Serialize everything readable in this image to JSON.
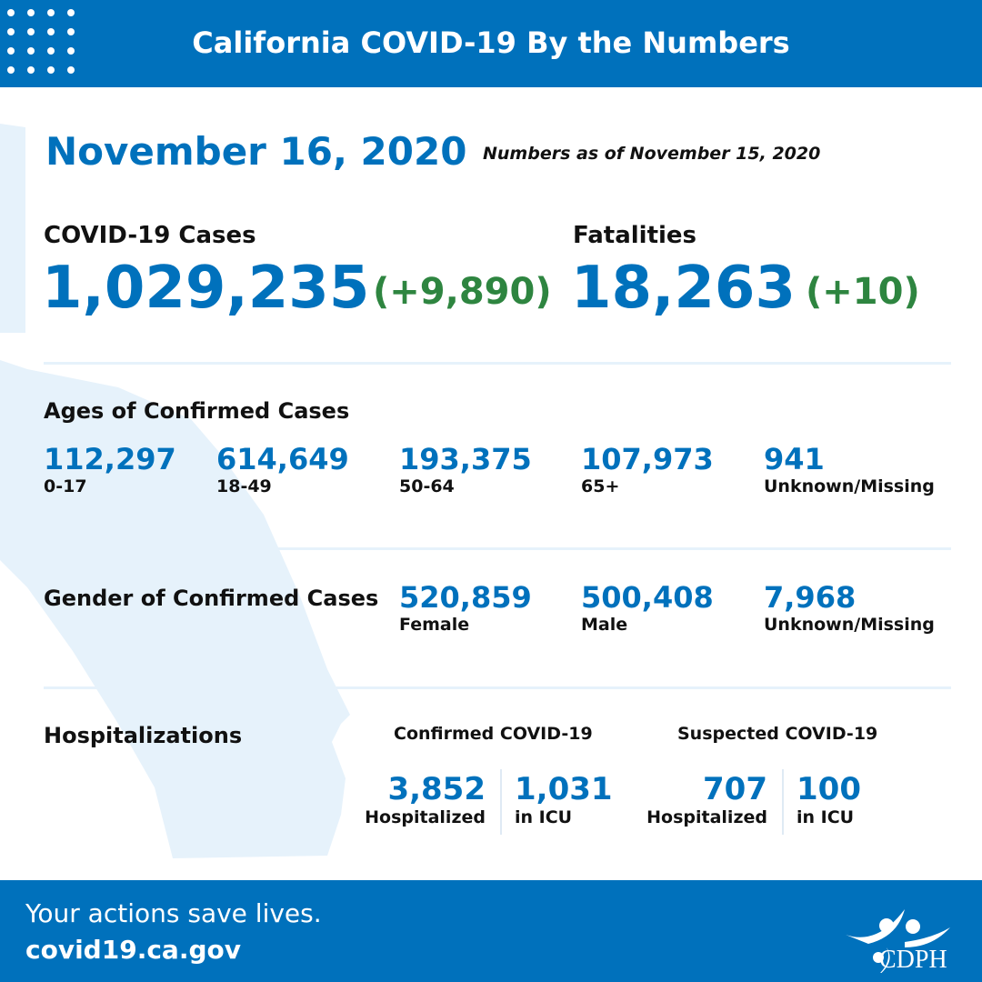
{
  "header": {
    "title": "California COVID-19 By the Numbers"
  },
  "date": "November 16, 2020",
  "as_of": "Numbers as of November 15, 2020",
  "cases": {
    "label": "COVID-19 Cases",
    "total": "1,029,235",
    "change": "(+9,890)"
  },
  "fatalities": {
    "label": "Fatalities",
    "total": "18,263",
    "change": "(+10)"
  },
  "ages": {
    "title": "Ages of Confirmed Cases",
    "items": [
      {
        "value": "112,297",
        "label": "0-17"
      },
      {
        "value": "614,649",
        "label": "18-49"
      },
      {
        "value": "193,375",
        "label": "50-64"
      },
      {
        "value": "107,973",
        "label": "65+"
      },
      {
        "value": "941",
        "label": "Unknown/Missing"
      }
    ]
  },
  "gender": {
    "title": "Gender of Confirmed Cases",
    "items": [
      {
        "value": "520,859",
        "label": "Female"
      },
      {
        "value": "500,408",
        "label": "Male"
      },
      {
        "value": "7,968",
        "label": "Unknown/Missing"
      }
    ]
  },
  "hosp": {
    "title": "Hospitalizations",
    "confirmed": {
      "title": "Confirmed COVID-19",
      "hospitalized": "3,852",
      "hospitalized_label": "Hospitalized",
      "icu": "1,031",
      "icu_label": "in ICU"
    },
    "suspected": {
      "title": "Suspected COVID-19",
      "hospitalized": "707",
      "hospitalized_label": "Hospitalized",
      "icu": "100",
      "icu_label": "in ICU"
    }
  },
  "footer": {
    "tagline": "Your actions save lives.",
    "url": "covid19.ca.gov",
    "logo": "CDPH"
  },
  "colors": {
    "brand": "#0071bc",
    "increase": "#2e8540",
    "map": "#e6f2fb"
  }
}
